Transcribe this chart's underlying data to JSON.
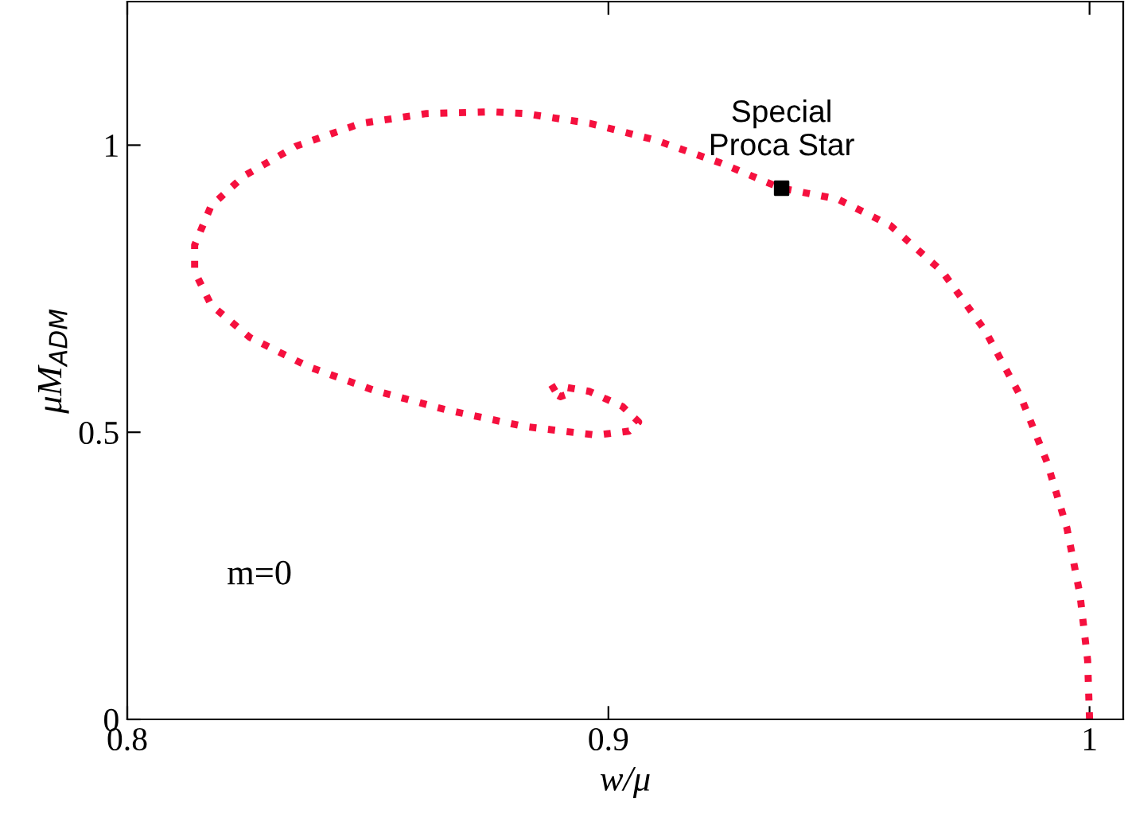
{
  "chart_data": {
    "type": "line",
    "xlabel": "w/μ",
    "ylabel": "μM$_{ADM}$",
    "xlim": [
      0.8,
      1.007
    ],
    "ylim": [
      0,
      1.25
    ],
    "xticks": [
      0.8,
      0.9,
      1
    ],
    "yticks": [
      0,
      0.5,
      1
    ],
    "grid": false,
    "legend": false,
    "series": [
      {
        "color": "#f5103e",
        "line_style": "dotted",
        "marker": "none",
        "x": [
          1.0,
          0.9996,
          0.998,
          0.9953,
          0.9912,
          0.9857,
          0.9783,
          0.9694,
          0.9586,
          0.9477,
          0.9359,
          0.9233,
          0.9097,
          0.8961,
          0.8826,
          0.8758,
          0.8622,
          0.8486,
          0.835,
          0.8242,
          0.8174,
          0.814,
          0.814,
          0.8174,
          0.8255,
          0.8377,
          0.8513,
          0.8663,
          0.8826,
          0.8975,
          0.9043,
          0.9063,
          0.9029,
          0.8961,
          0.8893,
          0.8877,
          0.89,
          0.8914
        ],
        "values": [
          0,
          0.103,
          0.218,
          0.333,
          0.447,
          0.562,
          0.677,
          0.78,
          0.86,
          0.906,
          0.925,
          0.969,
          1.009,
          1.038,
          1.055,
          1.058,
          1.055,
          1.038,
          0.998,
          0.946,
          0.894,
          0.826,
          0.78,
          0.722,
          0.665,
          0.614,
          0.573,
          0.539,
          0.51,
          0.495,
          0.502,
          0.518,
          0.545,
          0.571,
          0.581,
          0.573,
          0.562,
          0.566
        ]
      },
      {
        "type": "scatter",
        "color": "#000000",
        "marker": "square",
        "x": [
          0.936
        ],
        "values": [
          0.925
        ]
      }
    ],
    "annotations": [
      {
        "text": "Special\nProca Star",
        "x": 0.936,
        "y": 0.925
      },
      "m=0"
    ]
  }
}
